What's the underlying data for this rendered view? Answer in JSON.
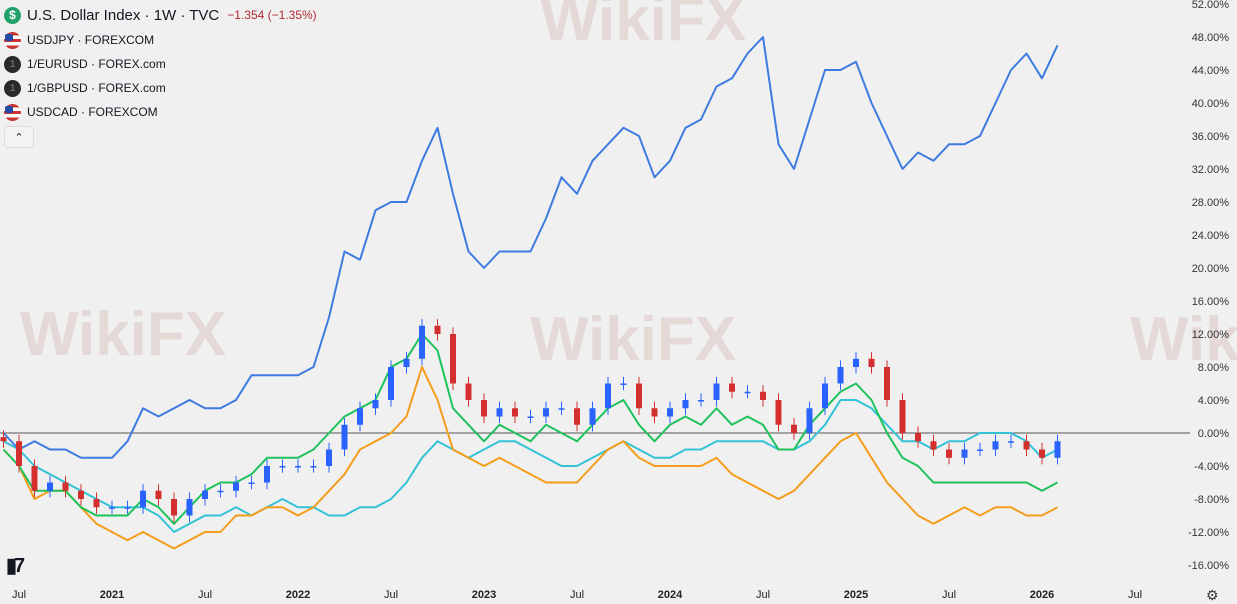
{
  "legend": {
    "title": "U.S. Dollar Index · 1W · TVC",
    "change": "−1.354 (−1.35%)",
    "items": [
      {
        "label": "USDJPY · FOREXCOM",
        "icon": "us-jp-flag-icon"
      },
      {
        "label": "1/EURUSD · FOREX.com",
        "icon": "one-icon"
      },
      {
        "label": "1/GBPUSD · FOREX.com",
        "icon": "one-icon"
      },
      {
        "label": "USDCAD · FOREXCOM",
        "icon": "us-ca-flag-icon"
      }
    ],
    "collapse_icon": "chevron-up-icon"
  },
  "watermark": "WikiFX",
  "logo": "TV",
  "settings_icon": "gear-icon",
  "chart_data": {
    "type": "line",
    "title": "U.S. Dollar Index · 1W · TVC",
    "ylabel": "",
    "xlabel": "",
    "ylim": [
      -16,
      52
    ],
    "y_unit": "%",
    "grid": false,
    "zero_line": true,
    "y_ticks": [
      "52.00%",
      "48.00%",
      "44.00%",
      "40.00%",
      "36.00%",
      "32.00%",
      "28.00%",
      "24.00%",
      "20.00%",
      "16.00%",
      "12.00%",
      "8.00%",
      "4.00%",
      "0.00%",
      "-4.00%",
      "-8.00%",
      "-12.00%",
      "-16.00%"
    ],
    "x_ticks": [
      {
        "label": "Jul",
        "date": "2020-07"
      },
      {
        "label": "2021",
        "date": "2021-01"
      },
      {
        "label": "Jul",
        "date": "2021-07"
      },
      {
        "label": "2022",
        "date": "2022-01"
      },
      {
        "label": "Jul",
        "date": "2022-07"
      },
      {
        "label": "2023",
        "date": "2023-01"
      },
      {
        "label": "Jul",
        "date": "2023-07"
      },
      {
        "label": "2024",
        "date": "2024-01"
      },
      {
        "label": "Jul",
        "date": "2024-07"
      },
      {
        "label": "2025",
        "date": "2025-01"
      },
      {
        "label": "Jul",
        "date": "2025-07"
      },
      {
        "label": "2026",
        "date": "2026-01"
      },
      {
        "label": "Jul",
        "date": "2026-07"
      }
    ],
    "x_range": [
      "2020-06",
      "2026-10"
    ],
    "x_start": "2020-06",
    "x_step": "1 month",
    "candles": {
      "name": "U.S. Dollar Index",
      "up_color": "#2962ff",
      "down_color": "#d32f2f",
      "closes": [
        -1,
        -4,
        -7,
        -6,
        -7,
        -8,
        -9,
        -9,
        -9,
        -7,
        -8,
        -10,
        -8,
        -7,
        -7,
        -6,
        -6,
        -4,
        -4,
        -4,
        -4,
        -2,
        1,
        3,
        4,
        8,
        9,
        13,
        12,
        6,
        4,
        2,
        3,
        2,
        2,
        3,
        3,
        1,
        3,
        6,
        6,
        3,
        2,
        3,
        4,
        4,
        6,
        5,
        5,
        4,
        1,
        0,
        3,
        6,
        8,
        9,
        8,
        4,
        0,
        -1,
        -2,
        -3,
        -2,
        -2,
        -1,
        -1,
        -2,
        -3,
        -1
      ]
    },
    "series": [
      {
        "name": "USDJPY",
        "color": "#3d7be0",
        "values": [
          0,
          -2,
          -1,
          -2,
          -2,
          -3,
          -3,
          -3,
          -1,
          3,
          2,
          3,
          4,
          3,
          3,
          4,
          7,
          7,
          7,
          7,
          8,
          14,
          22,
          21,
          27,
          28,
          28,
          33,
          37,
          29,
          22,
          20,
          22,
          22,
          22,
          26,
          31,
          29,
          33,
          35,
          37,
          36,
          31,
          33,
          37,
          38,
          42,
          43,
          46,
          48,
          35,
          32,
          38,
          44,
          44,
          45,
          40,
          36,
          32,
          34,
          33,
          35,
          35,
          36,
          40,
          44,
          46,
          43,
          47
        ]
      },
      {
        "name": "1/EURUSD",
        "color": "#1ec25a",
        "values": [
          -2,
          -4,
          -7,
          -7,
          -7,
          -9,
          -10,
          -10,
          -10,
          -8,
          -9,
          -11,
          -9,
          -7,
          -6,
          -6,
          -5,
          -3,
          -3,
          -3,
          -2,
          0,
          2,
          3,
          4,
          8,
          9,
          12,
          10,
          3,
          1,
          -1,
          1,
          0,
          -1,
          1,
          0,
          -1,
          1,
          3,
          4,
          1,
          -1,
          1,
          2,
          1,
          3,
          1,
          2,
          1,
          -2,
          -2,
          1,
          3,
          5,
          6,
          4,
          0,
          -3,
          -4,
          -6,
          -6,
          -6,
          -6,
          -6,
          -6,
          -6,
          -7,
          -6
        ]
      },
      {
        "name": "1/GBPUSD",
        "color": "#f59c1a",
        "values": [
          -2,
          -4,
          -8,
          -7,
          -7,
          -9,
          -11,
          -12,
          -13,
          -12,
          -13,
          -14,
          -13,
          -12,
          -12,
          -10,
          -10,
          -9,
          -9,
          -10,
          -9,
          -7,
          -5,
          -2,
          -1,
          0,
          2,
          8,
          4,
          -2,
          -3,
          -4,
          -3,
          -4,
          -5,
          -6,
          -6,
          -6,
          -4,
          -2,
          -1,
          -3,
          -4,
          -4,
          -4,
          -4,
          -3,
          -5,
          -6,
          -7,
          -8,
          -7,
          -5,
          -3,
          -1,
          0,
          -3,
          -6,
          -8,
          -10,
          -11,
          -10,
          -9,
          -10,
          -9,
          -9,
          -10,
          -10,
          -9
        ]
      },
      {
        "name": "USDCAD",
        "color": "#33c2d6",
        "values": [
          -1,
          -2,
          -4,
          -5,
          -6,
          -7,
          -8,
          -9,
          -9,
          -9,
          -10,
          -12,
          -11,
          -10,
          -10,
          -9,
          -10,
          -9,
          -8,
          -9,
          -9,
          -10,
          -10,
          -9,
          -9,
          -8,
          -6,
          -3,
          -1,
          -2,
          -3,
          -2,
          -1,
          -1,
          -2,
          -3,
          -4,
          -4,
          -3,
          -2,
          -1,
          -2,
          -3,
          -3,
          -2,
          -2,
          -1,
          -1,
          -1,
          -1,
          -2,
          -2,
          -1,
          1,
          4,
          4,
          3,
          1,
          -1,
          -1,
          -2,
          -1,
          -1,
          0,
          0,
          0,
          -1,
          -3,
          -2
        ]
      }
    ]
  }
}
